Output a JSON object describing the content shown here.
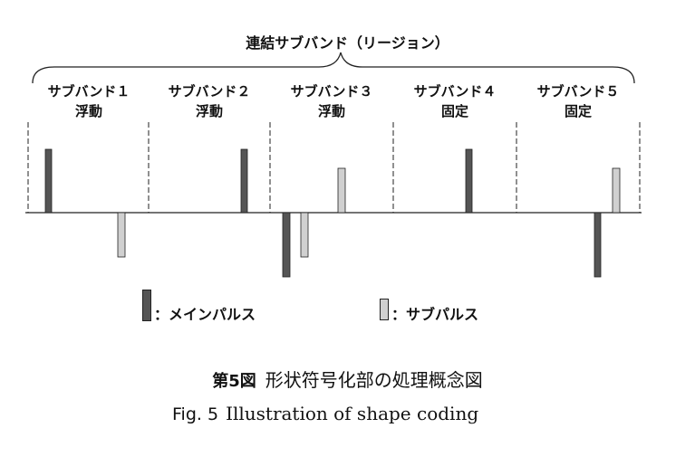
{
  "region_label": "連結サブバンド（リージョン）",
  "subbands": [
    {
      "name": "サブバンド１",
      "mode": "浮動"
    },
    {
      "name": "サブバンド２",
      "mode": "浮動"
    },
    {
      "name": "サブバンド３",
      "mode": "浮動"
    },
    {
      "name": "サブバンド４",
      "mode": "固定"
    },
    {
      "name": "サブバンド５",
      "mode": "固定"
    }
  ],
  "legend": {
    "main_pulse": "：メインパルス",
    "sub_pulse": "：サブパルス"
  },
  "colors": {
    "main_pulse": "#555555",
    "sub_pulse": "#d0d0d0",
    "line": "#222222"
  },
  "caption": {
    "ja_number": "第5図",
    "ja_title": "形状符号化部の処理概念図",
    "en_number": "Fig. 5",
    "en_title": "Illustration of shape coding"
  }
}
